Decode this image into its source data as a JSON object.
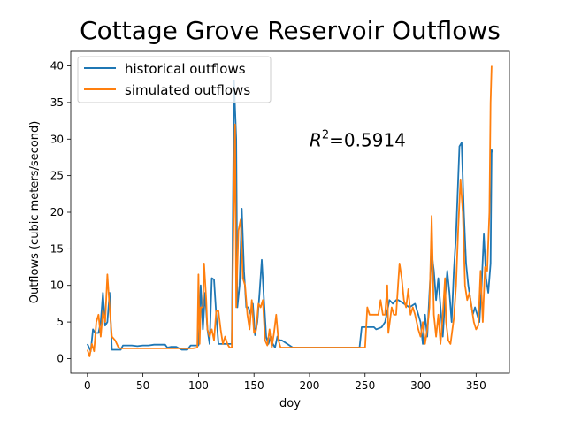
{
  "chart_data": {
    "type": "line",
    "title": "Cottage Grove Reservoir Outflows",
    "xlabel": "doy",
    "ylabel": "Outflows (cubic meters/second)",
    "xlim": [
      -15,
      380
    ],
    "ylim": [
      -2,
      42
    ],
    "xticks": [
      0,
      50,
      100,
      150,
      200,
      250,
      300,
      350
    ],
    "yticks": [
      0,
      5,
      10,
      15,
      20,
      25,
      30,
      35,
      40
    ],
    "grid": false,
    "legend_position": "top-left",
    "annotation": {
      "prefix": "R",
      "superscript": "2",
      "value": "=0.5914",
      "x": 200,
      "y": 30
    },
    "series": [
      {
        "name": "historical outflows",
        "color": "#1f77b4",
        "points": [
          [
            0,
            2
          ],
          [
            3,
            1
          ],
          [
            5,
            4
          ],
          [
            7,
            3.5
          ],
          [
            10,
            3.5
          ],
          [
            12,
            5
          ],
          [
            14,
            9
          ],
          [
            16,
            4.5
          ],
          [
            18,
            5
          ],
          [
            20,
            9
          ],
          [
            22,
            1.2
          ],
          [
            25,
            1.2
          ],
          [
            30,
            1.2
          ],
          [
            32,
            1.8
          ],
          [
            40,
            1.8
          ],
          [
            45,
            1.7
          ],
          [
            50,
            1.8
          ],
          [
            55,
            1.8
          ],
          [
            60,
            1.9
          ],
          [
            70,
            1.9
          ],
          [
            72,
            1.5
          ],
          [
            75,
            1.6
          ],
          [
            80,
            1.6
          ],
          [
            85,
            1.2
          ],
          [
            90,
            1.2
          ],
          [
            93,
            1.8
          ],
          [
            95,
            1.8
          ],
          [
            100,
            1.8
          ],
          [
            102,
            10
          ],
          [
            104,
            4
          ],
          [
            106,
            9
          ],
          [
            108,
            4
          ],
          [
            110,
            2
          ],
          [
            112,
            11
          ],
          [
            114,
            10.8
          ],
          [
            116,
            6
          ],
          [
            118,
            2
          ],
          [
            120,
            2
          ],
          [
            125,
            2
          ],
          [
            130,
            2
          ],
          [
            132,
            38
          ],
          [
            134,
            30
          ],
          [
            135,
            7
          ],
          [
            137,
            10
          ],
          [
            139,
            20.5
          ],
          [
            141,
            12
          ],
          [
            143,
            7
          ],
          [
            145,
            7
          ],
          [
            147,
            6
          ],
          [
            149,
            7.5
          ],
          [
            151,
            3.2
          ],
          [
            153,
            5
          ],
          [
            155,
            9
          ],
          [
            157,
            13.5
          ],
          [
            159,
            8
          ],
          [
            161,
            3
          ],
          [
            163,
            2
          ],
          [
            165,
            3
          ],
          [
            167,
            2
          ],
          [
            169,
            1.5
          ],
          [
            171,
            3
          ],
          [
            173,
            2.5
          ],
          [
            175,
            2.5
          ],
          [
            180,
            2
          ],
          [
            185,
            1.5
          ],
          [
            190,
            1.5
          ],
          [
            200,
            1.5
          ],
          [
            210,
            1.5
          ],
          [
            220,
            1.5
          ],
          [
            230,
            1.5
          ],
          [
            240,
            1.5
          ],
          [
            245,
            1.5
          ],
          [
            247,
            4.3
          ],
          [
            250,
            4.3
          ],
          [
            255,
            4.3
          ],
          [
            258,
            4.3
          ],
          [
            260,
            4
          ],
          [
            265,
            4.3
          ],
          [
            268,
            5
          ],
          [
            270,
            6.5
          ],
          [
            272,
            8
          ],
          [
            275,
            7.5
          ],
          [
            278,
            8
          ],
          [
            280,
            8
          ],
          [
            285,
            7.5
          ],
          [
            290,
            7
          ],
          [
            295,
            7.5
          ],
          [
            300,
            5
          ],
          [
            302,
            2
          ],
          [
            304,
            6
          ],
          [
            306,
            3
          ],
          [
            308,
            9
          ],
          [
            310,
            14.5
          ],
          [
            312,
            12
          ],
          [
            314,
            8
          ],
          [
            316,
            11
          ],
          [
            318,
            7
          ],
          [
            320,
            3
          ],
          [
            322,
            8
          ],
          [
            324,
            12
          ],
          [
            326,
            9
          ],
          [
            328,
            5
          ],
          [
            330,
            12
          ],
          [
            332,
            17
          ],
          [
            335,
            29
          ],
          [
            337,
            29.5
          ],
          [
            339,
            20
          ],
          [
            341,
            13
          ],
          [
            343,
            10
          ],
          [
            345,
            8
          ],
          [
            347,
            6
          ],
          [
            349,
            7
          ],
          [
            351,
            6
          ],
          [
            353,
            5
          ],
          [
            355,
            10
          ],
          [
            357,
            17
          ],
          [
            359,
            11
          ],
          [
            361,
            9
          ],
          [
            363,
            13
          ],
          [
            364,
            28.5
          ],
          [
            365,
            28.2
          ]
        ]
      },
      {
        "name": "simulated outflows",
        "color": "#ff7f0e",
        "points": [
          [
            0,
            1.2
          ],
          [
            2,
            0.3
          ],
          [
            4,
            2
          ],
          [
            6,
            1
          ],
          [
            8,
            5
          ],
          [
            10,
            6
          ],
          [
            12,
            3
          ],
          [
            14,
            6.5
          ],
          [
            16,
            5
          ],
          [
            18,
            11.5
          ],
          [
            20,
            7
          ],
          [
            22,
            3
          ],
          [
            25,
            2.5
          ],
          [
            28,
            1.5
          ],
          [
            30,
            1.4
          ],
          [
            40,
            1.4
          ],
          [
            50,
            1.4
          ],
          [
            60,
            1.4
          ],
          [
            70,
            1.4
          ],
          [
            80,
            1.4
          ],
          [
            90,
            1.4
          ],
          [
            95,
            1.4
          ],
          [
            99,
            1.5
          ],
          [
            100,
            11.5
          ],
          [
            101,
            2
          ],
          [
            102,
            7
          ],
          [
            104,
            7
          ],
          [
            105,
            13
          ],
          [
            107,
            8
          ],
          [
            108,
            4
          ],
          [
            110,
            3
          ],
          [
            112,
            4
          ],
          [
            114,
            2.5
          ],
          [
            116,
            6.5
          ],
          [
            118,
            6.5
          ],
          [
            120,
            4
          ],
          [
            122,
            2
          ],
          [
            124,
            3
          ],
          [
            126,
            2
          ],
          [
            128,
            1.5
          ],
          [
            130,
            1.5
          ],
          [
            131,
            12
          ],
          [
            133,
            32
          ],
          [
            134,
            7
          ],
          [
            136,
            17.5
          ],
          [
            138,
            19
          ],
          [
            140,
            11
          ],
          [
            142,
            10
          ],
          [
            144,
            6
          ],
          [
            146,
            4
          ],
          [
            148,
            8
          ],
          [
            150,
            3.5
          ],
          [
            152,
            4
          ],
          [
            154,
            7.5
          ],
          [
            156,
            7
          ],
          [
            158,
            8
          ],
          [
            160,
            2.5
          ],
          [
            162,
            1.8
          ],
          [
            164,
            4
          ],
          [
            166,
            1.5
          ],
          [
            168,
            3.5
          ],
          [
            170,
            6
          ],
          [
            172,
            2.5
          ],
          [
            174,
            1.5
          ],
          [
            178,
            1.5
          ],
          [
            180,
            1.5
          ],
          [
            190,
            1.5
          ],
          [
            200,
            1.5
          ],
          [
            210,
            1.5
          ],
          [
            220,
            1.5
          ],
          [
            230,
            1.5
          ],
          [
            240,
            1.5
          ],
          [
            250,
            1.5
          ],
          [
            252,
            7
          ],
          [
            254,
            6
          ],
          [
            258,
            6
          ],
          [
            262,
            6
          ],
          [
            264,
            8
          ],
          [
            266,
            6
          ],
          [
            268,
            6
          ],
          [
            270,
            10
          ],
          [
            271,
            3.5
          ],
          [
            274,
            7
          ],
          [
            276,
            6
          ],
          [
            278,
            6
          ],
          [
            281,
            13
          ],
          [
            283,
            11
          ],
          [
            285,
            8
          ],
          [
            287,
            7
          ],
          [
            289,
            9.5
          ],
          [
            291,
            6
          ],
          [
            293,
            7
          ],
          [
            295,
            6
          ],
          [
            298,
            4
          ],
          [
            300,
            3
          ],
          [
            302,
            5
          ],
          [
            304,
            2
          ],
          [
            306,
            4
          ],
          [
            308,
            7
          ],
          [
            310,
            19.5
          ],
          [
            312,
            6
          ],
          [
            314,
            3
          ],
          [
            316,
            6
          ],
          [
            318,
            2
          ],
          [
            320,
            6
          ],
          [
            322,
            11
          ],
          [
            323,
            5
          ],
          [
            325,
            2.5
          ],
          [
            327,
            2
          ],
          [
            330,
            5.5
          ],
          [
            332,
            10
          ],
          [
            334,
            18
          ],
          [
            336,
            24.5
          ],
          [
            338,
            20
          ],
          [
            340,
            10
          ],
          [
            342,
            8
          ],
          [
            344,
            9
          ],
          [
            346,
            7
          ],
          [
            348,
            5
          ],
          [
            350,
            4
          ],
          [
            352,
            4.5
          ],
          [
            354,
            12
          ],
          [
            356,
            5
          ],
          [
            358,
            12.5
          ],
          [
            360,
            12
          ],
          [
            362,
            20
          ],
          [
            363,
            35
          ],
          [
            364,
            40
          ]
        ]
      }
    ]
  }
}
